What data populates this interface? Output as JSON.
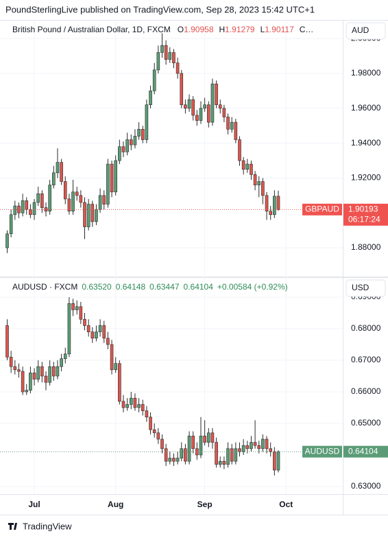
{
  "header": "PoundSterlingLive published on TradingView.com, Sep 28, 2023 15:42 UTC+1",
  "footer": "TradingView",
  "chart_data": [
    {
      "type": "candlestick",
      "title": "British Pound / Australian Dollar, 1D, FXCM",
      "legend": [
        {
          "label": "O",
          "value": "1.90958"
        },
        {
          "label": "H",
          "value": "1.91279"
        },
        {
          "label": "L",
          "value": "1.90117"
        },
        {
          "label": "C…"
        }
      ],
      "currency": "AUD",
      "open": [
        1.88,
        1.888,
        1.899,
        1.904,
        1.9,
        1.907,
        1.902,
        1.899,
        1.906,
        1.911,
        1.903,
        1.901,
        1.916,
        1.923,
        1.929,
        1.918,
        1.908,
        1.901,
        1.912,
        1.91,
        1.906,
        1.892,
        1.905,
        1.895,
        1.902,
        1.91,
        1.905,
        1.928,
        1.912,
        1.93,
        1.938,
        1.935,
        1.942,
        1.939,
        1.944,
        1.948,
        1.942,
        1.962,
        1.97,
        1.982,
        1.992,
        1.996,
        1.988,
        1.992,
        1.986,
        1.98,
        1.962,
        1.96,
        1.965,
        1.956,
        1.953,
        1.96,
        1.962,
        1.952,
        1.974,
        1.962,
        1.96,
        1.955,
        1.948,
        1.952,
        1.942,
        1.93,
        1.925,
        1.928,
        1.922,
        1.916,
        1.918,
        1.91,
        1.901,
        1.899,
        1.90958,
        null,
        null
      ],
      "high": [
        1.89,
        1.902,
        1.907,
        1.906,
        1.911,
        1.909,
        1.905,
        1.908,
        1.915,
        1.913,
        1.906,
        1.919,
        1.927,
        1.937,
        1.931,
        1.921,
        1.911,
        1.919,
        1.915,
        1.913,
        1.909,
        1.908,
        1.907,
        1.905,
        1.914,
        1.913,
        1.931,
        1.93,
        1.933,
        1.942,
        1.941,
        1.946,
        1.945,
        1.948,
        1.952,
        1.95,
        1.965,
        1.973,
        1.986,
        1.996,
        2.003,
        1.999,
        1.995,
        1.994,
        1.989,
        1.982,
        1.965,
        1.968,
        1.967,
        1.959,
        1.964,
        1.966,
        1.964,
        1.977,
        1.976,
        1.965,
        1.962,
        1.957,
        1.955,
        1.954,
        1.944,
        1.932,
        1.931,
        1.93,
        1.924,
        1.921,
        1.92,
        1.912,
        1.904,
        1.913,
        1.91279,
        null,
        null
      ],
      "low": [
        1.877,
        1.886,
        1.896,
        1.897,
        1.898,
        1.899,
        1.897,
        1.896,
        1.904,
        1.9,
        1.898,
        1.899,
        1.914,
        1.92,
        1.916,
        1.905,
        1.899,
        1.899,
        1.907,
        1.903,
        1.885,
        1.89,
        1.892,
        1.893,
        1.9,
        1.902,
        1.903,
        1.909,
        1.91,
        1.928,
        1.932,
        1.933,
        1.936,
        1.937,
        1.942,
        1.94,
        1.94,
        1.96,
        1.968,
        1.98,
        1.989,
        1.985,
        1.986,
        1.983,
        1.977,
        1.96,
        1.957,
        1.958,
        1.953,
        1.95,
        1.951,
        1.958,
        1.949,
        1.95,
        1.96,
        1.957,
        1.952,
        1.945,
        1.946,
        1.94,
        1.927,
        1.922,
        1.923,
        1.919,
        1.913,
        1.909,
        1.905,
        1.896,
        1.896,
        1.897,
        1.90117,
        null,
        null
      ],
      "close": [
        1.888,
        1.899,
        1.904,
        1.9,
        1.907,
        1.902,
        1.899,
        1.906,
        1.911,
        1.903,
        1.901,
        1.916,
        1.923,
        1.929,
        1.918,
        1.908,
        1.901,
        1.912,
        1.91,
        1.906,
        1.892,
        1.905,
        1.895,
        1.902,
        1.91,
        1.905,
        1.928,
        1.912,
        1.93,
        1.938,
        1.935,
        1.942,
        1.939,
        1.944,
        1.948,
        1.942,
        1.962,
        1.97,
        1.982,
        1.992,
        1.996,
        1.988,
        1.992,
        1.986,
        1.98,
        1.962,
        1.96,
        1.965,
        1.956,
        1.953,
        1.96,
        1.962,
        1.952,
        1.974,
        1.962,
        1.96,
        1.955,
        1.948,
        1.952,
        1.942,
        1.93,
        1.925,
        1.928,
        1.922,
        1.916,
        1.918,
        1.91,
        1.901,
        1.899,
        1.9096,
        1.90193,
        null,
        null
      ],
      "ylim": [
        1.8635,
        2.0103
      ],
      "yticks": [
        {
          "value": 1.88,
          "label": "1.88000"
        },
        {
          "value": 1.92,
          "label": "1.92000"
        },
        {
          "value": 1.94,
          "label": "1.94000"
        },
        {
          "value": 1.96,
          "label": "1.96000"
        },
        {
          "value": 1.98,
          "label": "1.98000"
        },
        {
          "value": 2.0,
          "label": "2.00000"
        }
      ],
      "up_color": "#5b9c76",
      "down_color": "#d9574f",
      "wick_color": "#2a2a2a",
      "legend_value_color": "#e0534f",
      "last": {
        "symbol": "GBPAUD",
        "value": 1.90193,
        "countdown": "06:17:24",
        "color": "#ef5350"
      }
    },
    {
      "type": "candlestick",
      "title": "AUDUSD · FXCM",
      "legend": [
        {
          "value": "0.63520"
        },
        {
          "value": "0.64148"
        },
        {
          "value": "0.63447"
        },
        {
          "value": "0.64104"
        },
        {
          "value": "+0.00584 (+0.92%)"
        }
      ],
      "currency": "USD",
      "categories": [
        null,
        null,
        null,
        null,
        null,
        null,
        null,
        "Jul",
        null,
        null,
        null,
        null,
        null,
        null,
        null,
        null,
        null,
        null,
        null,
        null,
        null,
        null,
        null,
        null,
        null,
        null,
        null,
        null,
        "Aug",
        null,
        null,
        null,
        null,
        null,
        null,
        null,
        null,
        null,
        null,
        null,
        null,
        null,
        null,
        null,
        null,
        null,
        null,
        null,
        null,
        null,
        null,
        "Sep",
        null,
        null,
        null,
        null,
        null,
        null,
        null,
        null,
        null,
        null,
        null,
        null,
        null,
        null,
        null,
        null,
        null,
        null,
        null,
        null,
        "Oct"
      ],
      "open": [
        0.681,
        0.671,
        0.668,
        0.667,
        0.6665,
        0.66,
        0.6605,
        0.666,
        0.664,
        0.668,
        0.665,
        0.663,
        0.668,
        0.665,
        0.668,
        0.6705,
        0.672,
        0.688,
        0.686,
        0.687,
        0.683,
        0.681,
        0.679,
        0.677,
        0.679,
        0.681,
        0.677,
        0.675,
        0.667,
        0.669,
        0.657,
        0.655,
        0.656,
        0.658,
        0.655,
        0.656,
        0.654,
        0.652,
        0.648,
        0.647,
        0.645,
        0.642,
        0.638,
        0.639,
        0.638,
        0.639,
        0.642,
        0.638,
        0.646,
        0.642,
        0.64,
        0.646,
        0.644,
        0.647,
        0.644,
        0.637,
        0.638,
        0.637,
        0.642,
        0.638,
        0.642,
        0.641,
        0.643,
        0.642,
        0.644,
        0.643,
        0.642,
        0.645,
        0.642,
        0.641,
        0.6352,
        null,
        null
      ],
      "high": [
        0.683,
        0.673,
        0.67,
        0.669,
        0.668,
        0.6625,
        0.668,
        0.6675,
        0.67,
        0.6695,
        0.6665,
        0.67,
        0.6695,
        0.67,
        0.672,
        0.674,
        0.69,
        0.6895,
        0.689,
        0.6885,
        0.685,
        0.683,
        0.6805,
        0.681,
        0.683,
        0.6825,
        0.679,
        0.6765,
        0.671,
        0.67,
        0.659,
        0.658,
        0.66,
        0.6595,
        0.658,
        0.6575,
        0.6555,
        0.6535,
        0.65,
        0.6485,
        0.6465,
        0.6435,
        0.641,
        0.6405,
        0.641,
        0.644,
        0.6435,
        0.6475,
        0.6475,
        0.644,
        0.652,
        0.651,
        0.6485,
        0.6485,
        0.6455,
        0.6395,
        0.6395,
        0.644,
        0.6435,
        0.644,
        0.644,
        0.645,
        0.6445,
        0.646,
        0.651,
        0.6445,
        0.6465,
        0.646,
        0.644,
        0.6425,
        0.64148,
        null,
        null
      ],
      "low": [
        0.67,
        0.666,
        0.6655,
        0.6645,
        0.659,
        0.659,
        0.6595,
        0.662,
        0.663,
        0.663,
        0.6605,
        0.662,
        0.6635,
        0.664,
        0.6665,
        0.669,
        0.671,
        0.684,
        0.6845,
        0.6815,
        0.6795,
        0.6775,
        0.6755,
        0.676,
        0.6775,
        0.6755,
        0.6735,
        0.6655,
        0.666,
        0.656,
        0.6535,
        0.654,
        0.6545,
        0.654,
        0.6535,
        0.6525,
        0.6505,
        0.6465,
        0.6455,
        0.6435,
        0.6405,
        0.6365,
        0.637,
        0.6365,
        0.637,
        0.638,
        0.637,
        0.637,
        0.6405,
        0.6385,
        0.639,
        0.643,
        0.6425,
        0.642,
        0.636,
        0.636,
        0.6355,
        0.636,
        0.637,
        0.637,
        0.6395,
        0.64,
        0.6405,
        0.641,
        0.642,
        0.6405,
        0.641,
        0.6405,
        0.6395,
        0.6335,
        0.63447,
        null,
        null
      ],
      "close": [
        0.671,
        0.668,
        0.667,
        0.6665,
        0.66,
        0.6605,
        0.666,
        0.664,
        0.668,
        0.665,
        0.663,
        0.668,
        0.665,
        0.668,
        0.6705,
        0.672,
        0.688,
        0.686,
        0.687,
        0.683,
        0.681,
        0.679,
        0.677,
        0.679,
        0.681,
        0.677,
        0.675,
        0.667,
        0.669,
        0.657,
        0.655,
        0.656,
        0.658,
        0.655,
        0.656,
        0.654,
        0.652,
        0.648,
        0.647,
        0.645,
        0.642,
        0.638,
        0.639,
        0.638,
        0.639,
        0.642,
        0.638,
        0.646,
        0.642,
        0.64,
        0.646,
        0.644,
        0.647,
        0.644,
        0.637,
        0.638,
        0.637,
        0.642,
        0.638,
        0.642,
        0.641,
        0.643,
        0.642,
        0.644,
        0.643,
        0.642,
        0.645,
        0.642,
        0.641,
        0.6352,
        0.64104,
        null,
        null
      ],
      "ylim": [
        0.6276,
        0.6961
      ],
      "yticks": [
        {
          "value": 0.63,
          "label": "0.63000"
        },
        {
          "value": 0.65,
          "label": "0.65000"
        },
        {
          "value": 0.66,
          "label": "0.66000"
        },
        {
          "value": 0.67,
          "label": "0.67000"
        },
        {
          "value": 0.68,
          "label": "0.68000"
        },
        {
          "value": 0.69,
          "label": "0.69000"
        }
      ],
      "up_color": "#5b9c76",
      "down_color": "#d9574f",
      "wick_color": "#2a2a2a",
      "legend_value_color": "#2e8b57",
      "last": {
        "symbol": "AUDUSD",
        "value": 0.64104,
        "color": "#5b9c76"
      }
    }
  ]
}
